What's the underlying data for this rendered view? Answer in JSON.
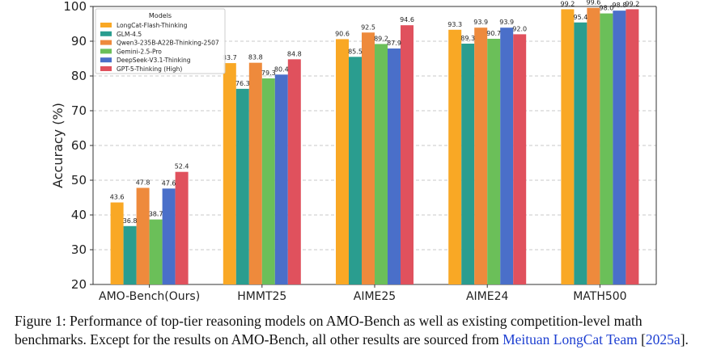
{
  "chart_data": {
    "type": "bar",
    "ylabel": "Accuracy (%)",
    "ylim": [
      20,
      100
    ],
    "yticks": [
      20,
      30,
      40,
      50,
      60,
      70,
      80,
      90,
      100
    ],
    "grid": true,
    "legend_title": "Models",
    "legend_position": "top-left",
    "categories": [
      "AMO-Bench(Ours)",
      "HMMT25",
      "AIME25",
      "AIME24",
      "MATH500"
    ],
    "series": [
      {
        "name": "LongCat-Flash-Thinking",
        "color": "#f9a825",
        "values": [
          43.6,
          83.7,
          90.6,
          93.3,
          99.2
        ]
      },
      {
        "name": "GLM-4.5",
        "color": "#2a9d8f",
        "values": [
          36.8,
          76.3,
          85.5,
          89.3,
          95.4
        ]
      },
      {
        "name": "Qwen3-235B-A22B-Thinking-2507",
        "color": "#ee8a3c",
        "values": [
          47.8,
          83.8,
          92.5,
          93.9,
          99.6
        ]
      },
      {
        "name": "Gemini-2.5-Pro",
        "color": "#6bbf59",
        "values": [
          38.7,
          79.3,
          89.2,
          90.7,
          98.0
        ]
      },
      {
        "name": "DeepSeek-V3.1-Thinking",
        "color": "#4a6fc9",
        "values": [
          47.6,
          80.4,
          87.9,
          93.9,
          98.8
        ]
      },
      {
        "name": "GPT-5-Thinking (High)",
        "color": "#e0515d",
        "values": [
          52.4,
          84.8,
          94.6,
          92.0,
          99.2
        ]
      }
    ]
  },
  "caption": {
    "line1": "Figure 1: Performance of top-tier reasoning models on AMO-Bench as well as existing competition-level math",
    "line2_prefix": "benchmarks. Except for the results on AMO-Bench, all other results are sourced from",
    "line2_link": "Meituan LongCat Team",
    "line2_cite_open": "[",
    "line2_cite_year": "2025a",
    "line2_cite_close": "]."
  }
}
